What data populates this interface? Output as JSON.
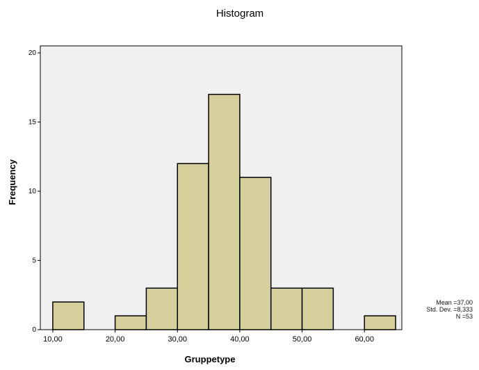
{
  "chart_data": {
    "type": "bar",
    "title": "Histogram",
    "xlabel": "Gruppetype",
    "ylabel": "Frequency",
    "bins": [
      {
        "from": 10,
        "to": 15,
        "count": 2
      },
      {
        "from": 15,
        "to": 20,
        "count": 0
      },
      {
        "from": 20,
        "to": 25,
        "count": 1
      },
      {
        "from": 25,
        "to": 30,
        "count": 3
      },
      {
        "from": 30,
        "to": 35,
        "count": 12
      },
      {
        "from": 35,
        "to": 40,
        "count": 17
      },
      {
        "from": 40,
        "to": 45,
        "count": 11
      },
      {
        "from": 45,
        "to": 50,
        "count": 3
      },
      {
        "from": 50,
        "to": 55,
        "count": 3
      },
      {
        "from": 55,
        "to": 60,
        "count": 0
      },
      {
        "from": 60,
        "to": 65,
        "count": 1
      }
    ],
    "x_ticks": [
      {
        "value": 10,
        "label": "10,00"
      },
      {
        "value": 20,
        "label": "20,00"
      },
      {
        "value": 30,
        "label": "30,00"
      },
      {
        "value": 40,
        "label": "40,00"
      },
      {
        "value": 50,
        "label": "50,00"
      },
      {
        "value": 60,
        "label": "60,00"
      }
    ],
    "y_ticks": [
      {
        "value": 0,
        "label": "0"
      },
      {
        "value": 5,
        "label": "5"
      },
      {
        "value": 10,
        "label": "10"
      },
      {
        "value": 15,
        "label": "15"
      },
      {
        "value": 20,
        "label": "20"
      }
    ],
    "xlim": [
      8,
      66
    ],
    "ylim": [
      0,
      20.5
    ],
    "grid": false,
    "bar_color": "#d5cf9c",
    "bar_edge_color": "#000000",
    "plot_bg": "#f0f0f0",
    "stats": {
      "mean": "Mean =37,00",
      "std_dev": "Std. Dev. =8,333",
      "n": "N =53"
    }
  }
}
